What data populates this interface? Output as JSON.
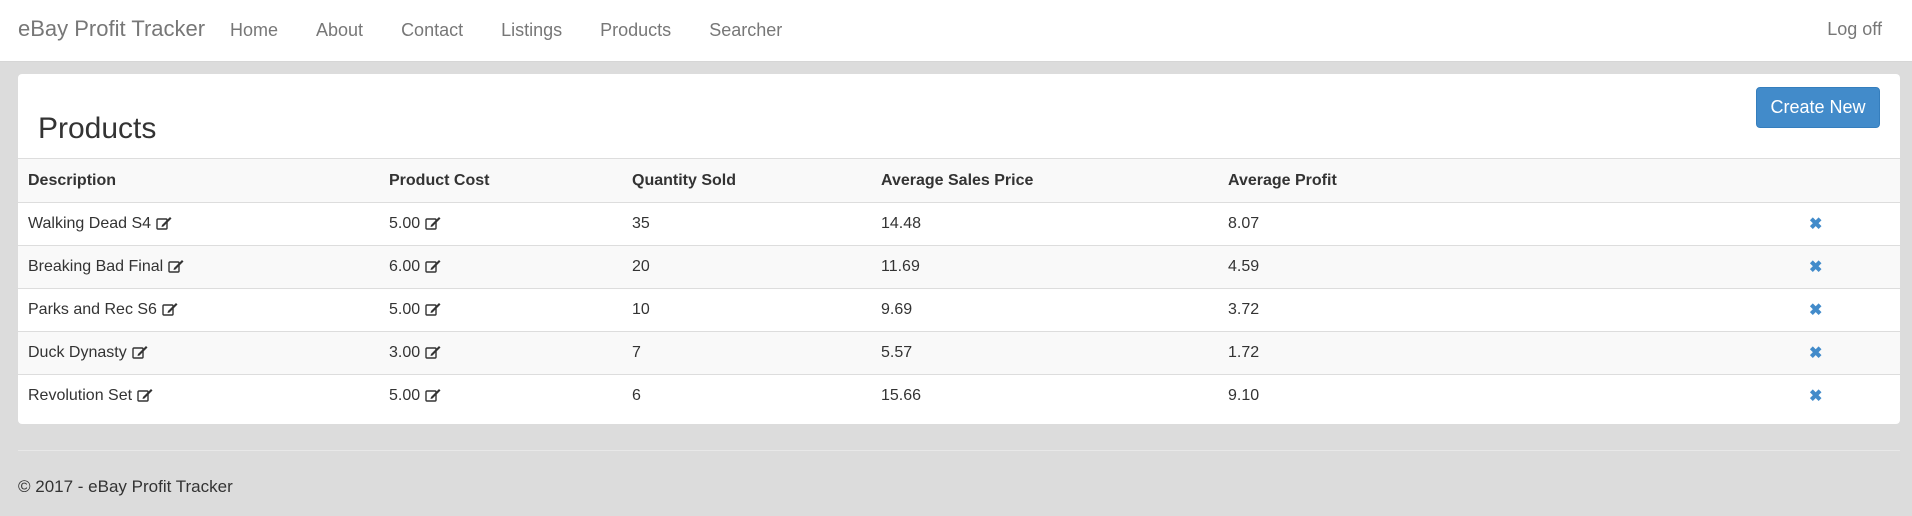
{
  "brand": "eBay Profit Tracker",
  "nav": [
    "Home",
    "About",
    "Contact",
    "Listings",
    "Products",
    "Searcher"
  ],
  "logoff": "Log off",
  "page_title": "Products",
  "create_button": "Create New",
  "columns": [
    "Description",
    "Product Cost",
    "Quantity Sold",
    "Average Sales Price",
    "Average Profit"
  ],
  "rows": [
    {
      "description": "Walking Dead S4",
      "cost": "5.00",
      "qty": "35",
      "avg_price": "14.48",
      "avg_profit": "8.07"
    },
    {
      "description": "Breaking Bad Final",
      "cost": "6.00",
      "qty": "20",
      "avg_price": "11.69",
      "avg_profit": "4.59"
    },
    {
      "description": "Parks and Rec S6",
      "cost": "5.00",
      "qty": "10",
      "avg_price": "9.69",
      "avg_profit": "3.72"
    },
    {
      "description": "Duck Dynasty",
      "cost": "3.00",
      "qty": "7",
      "avg_price": "5.57",
      "avg_profit": "1.72"
    },
    {
      "description": "Revolution Set",
      "cost": "5.00",
      "qty": "6",
      "avg_price": "15.66",
      "avg_profit": "9.10"
    }
  ],
  "icons": {
    "edit": "edit-icon",
    "delete": "remove-icon"
  },
  "colors": {
    "accent": "#428bca",
    "background": "#dcdcdc"
  },
  "footer": "© 2017 - eBay Profit Tracker"
}
